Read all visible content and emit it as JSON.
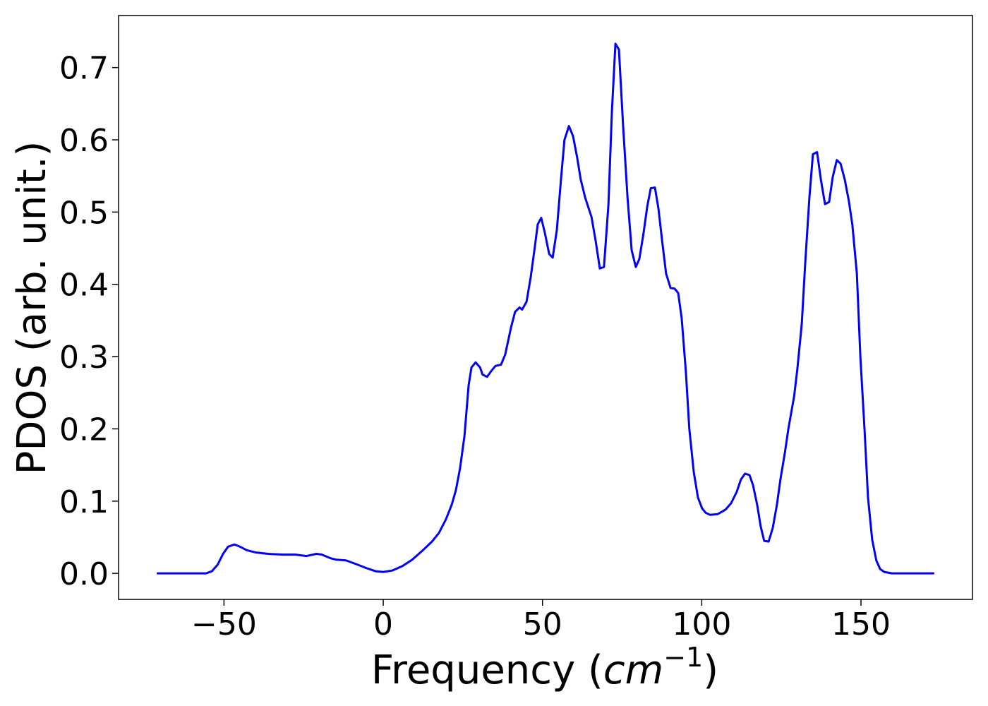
{
  "chart_data": {
    "type": "line",
    "xlabel": {
      "text": "Frequency (",
      "unit": "cm",
      "exponent": "−1",
      "close": ")"
    },
    "ylabel": "PDOS (arb. unit.)",
    "x": [
      -71.1,
      -55.6,
      -53.8,
      -52,
      -50.3,
      -48.7,
      -46.7,
      -45,
      -42.8,
      -40.1,
      -36.1,
      -31.7,
      -27.7,
      -24.1,
      -21,
      -19.3,
      -16.6,
      -14.8,
      -11.7,
      -8.6,
      -5.1,
      -2.4,
      0,
      2.9,
      6,
      9.1,
      12.2,
      15.3,
      17.5,
      19.7,
      21.5,
      22.8,
      24.1,
      25.5,
      26.8,
      27.7,
      29,
      30.4,
      31.2,
      32.6,
      33.9,
      35.2,
      37,
      38.3,
      40.1,
      41.4,
      42.8,
      43.6,
      45,
      46.3,
      47.6,
      48.5,
      49.6,
      50.7,
      52.1,
      53.2,
      54.5,
      55.8,
      56.9,
      58.3,
      59.6,
      60.9,
      62,
      63.4,
      65.4,
      66.7,
      68,
      69.3,
      70.7,
      71.8,
      72.9,
      74,
      75.3,
      76.7,
      78,
      79.3,
      80.4,
      81.7,
      82.9,
      84,
      85.3,
      86.4,
      87.7,
      88.8,
      90.2,
      91.5,
      92.6,
      93.7,
      95,
      96.1,
      97.5,
      98.8,
      100.1,
      101.2,
      102.6,
      105,
      107.4,
      109.2,
      111,
      112.3,
      113.6,
      115,
      116.1,
      117.4,
      118.5,
      119.6,
      121,
      122.3,
      123.6,
      124.7,
      126.1,
      127.2,
      129,
      130,
      131.4,
      132.5,
      133.8,
      134.9,
      136.2,
      137.4,
      138.7,
      140,
      141.1,
      142.4,
      143.6,
      144.9,
      146.2,
      147.3,
      148.7,
      149.8,
      151.1,
      152.2,
      153.5,
      154.8,
      156,
      157.3,
      159.7,
      173
    ],
    "series": [
      {
        "name": "PDOS",
        "color": "#0000ff",
        "values": [
          0,
          0,
          0.003,
          0.012,
          0.027,
          0.037,
          0.04,
          0.037,
          0.032,
          0.029,
          0.027,
          0.026,
          0.026,
          0.024,
          0.027,
          0.026,
          0.021,
          0.019,
          0.018,
          0.013,
          0.007,
          0.003,
          0.002,
          0.004,
          0.01,
          0.019,
          0.031,
          0.044,
          0.056,
          0.075,
          0.095,
          0.115,
          0.145,
          0.19,
          0.26,
          0.285,
          0.292,
          0.285,
          0.275,
          0.272,
          0.28,
          0.287,
          0.289,
          0.303,
          0.34,
          0.362,
          0.368,
          0.365,
          0.376,
          0.41,
          0.452,
          0.483,
          0.492,
          0.472,
          0.442,
          0.437,
          0.475,
          0.545,
          0.6,
          0.619,
          0.605,
          0.575,
          0.545,
          0.52,
          0.493,
          0.46,
          0.422,
          0.424,
          0.51,
          0.64,
          0.733,
          0.725,
          0.62,
          0.52,
          0.447,
          0.424,
          0.435,
          0.47,
          0.508,
          0.533,
          0.534,
          0.505,
          0.455,
          0.415,
          0.395,
          0.394,
          0.388,
          0.353,
          0.28,
          0.2,
          0.14,
          0.105,
          0.09,
          0.084,
          0.081,
          0.082,
          0.088,
          0.097,
          0.113,
          0.13,
          0.138,
          0.136,
          0.122,
          0.095,
          0.065,
          0.045,
          0.044,
          0.063,
          0.095,
          0.13,
          0.167,
          0.2,
          0.245,
          0.282,
          0.345,
          0.43,
          0.52,
          0.58,
          0.583,
          0.545,
          0.511,
          0.514,
          0.548,
          0.572,
          0.567,
          0.545,
          0.515,
          0.482,
          0.415,
          0.3,
          0.2,
          0.105,
          0.047,
          0.018,
          0.006,
          0.002,
          0,
          0
        ]
      }
    ],
    "xlim": [
      -83.1,
      185.0
    ],
    "ylim": [
      -0.036,
      0.772
    ],
    "xticks": [
      {
        "value": -50,
        "label": "−50"
      },
      0,
      50,
      100,
      150
    ],
    "yticks": [
      {
        "value": 0,
        "label": "0.0"
      },
      0.1,
      0.2,
      0.3,
      0.4,
      0.5,
      0.6,
      0.7
    ],
    "grid": false
  }
}
